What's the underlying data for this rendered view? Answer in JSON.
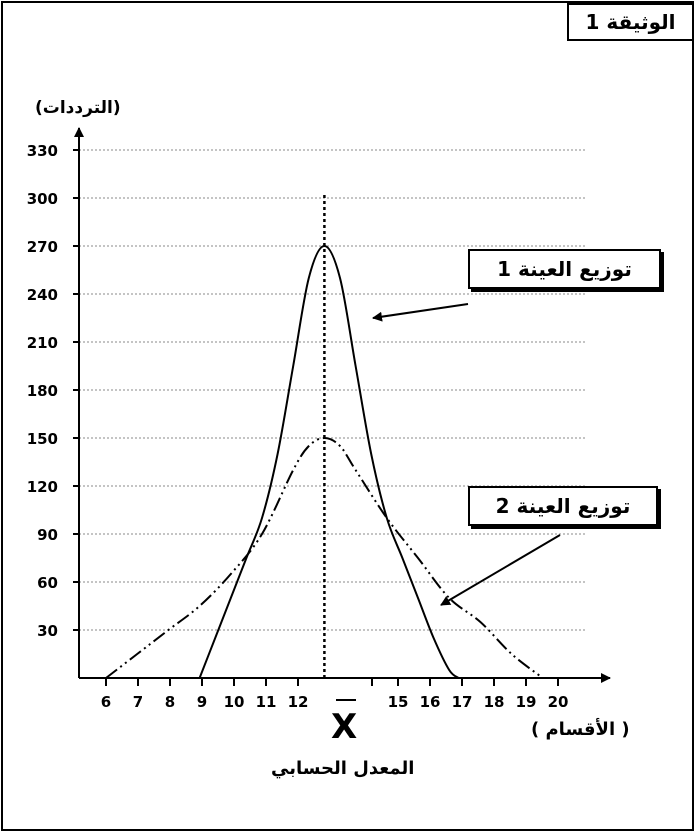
{
  "document_title": "الوثيقة 1",
  "chart_data": {
    "type": "line",
    "ylabel": "(الترددات)",
    "xlabel": "( الأقسام )",
    "ylim": [
      0,
      345
    ],
    "yticks": [
      30,
      60,
      90,
      120,
      150,
      180,
      210,
      240,
      270,
      300,
      330
    ],
    "xticks": [
      "6",
      "7",
      "8",
      "9",
      "10",
      "11",
      "12",
      "",
      "15",
      "16",
      "17",
      "18",
      "19",
      "20"
    ],
    "grid": true,
    "mean_symbol": "X",
    "mean_label": "المعدل الحسابي",
    "series": [
      {
        "name": "توزيع العينة 1",
        "style": "solid",
        "x": [
          9,
          9.5,
          10,
          10.5,
          11,
          11.5,
          12,
          12.5,
          13,
          13.5,
          14,
          14.5,
          15,
          15.5,
          16,
          16.5,
          17,
          17.3
        ],
        "y": [
          0,
          25,
          50,
          75,
          100,
          140,
          195,
          250,
          270,
          250,
          195,
          140,
          100,
          75,
          50,
          25,
          5,
          0
        ]
      },
      {
        "name": "توزيع العينة 2",
        "style": "dash-dot-dot",
        "x": [
          6,
          7,
          8,
          9,
          10,
          11,
          12,
          12.5,
          13,
          13.5,
          14,
          15,
          16,
          17,
          18,
          19,
          20
        ],
        "y": [
          0,
          15,
          30,
          45,
          65,
          90,
          130,
          145,
          150,
          145,
          130,
          100,
          75,
          50,
          35,
          15,
          0
        ]
      }
    ],
    "mean_x": 13
  }
}
